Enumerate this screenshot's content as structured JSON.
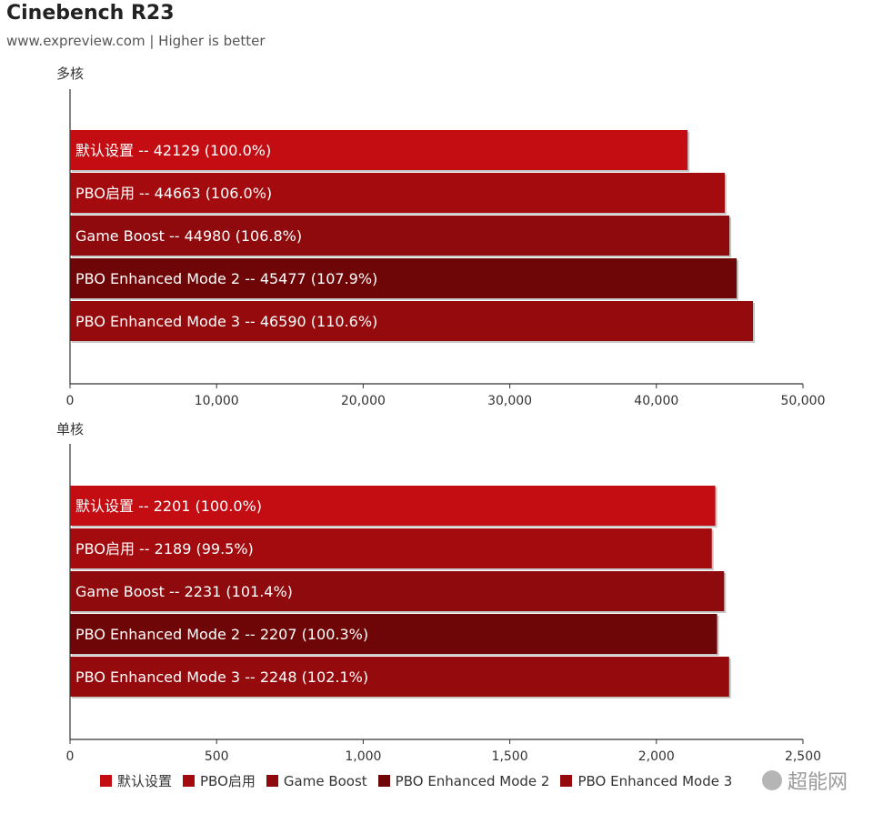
{
  "header": {
    "title": "Cinebench R23",
    "subtitle": "www.expreview.com | Higher is better"
  },
  "colors": {
    "series": [
      "#c40d12",
      "#a30b0e",
      "#8f0a0c",
      "#6e0607",
      "#950b0d"
    ],
    "axis": "#333333"
  },
  "watermark": {
    "text": "超能网",
    "icon": "wechat-icon"
  },
  "chart_data": [
    {
      "type": "bar",
      "orientation": "horizontal",
      "title": "多核",
      "categories": [
        "默认设置",
        "PBO启用",
        "Game Boost",
        "PBO Enhanced Mode 2",
        "PBO Enhanced Mode 3"
      ],
      "values": [
        42129,
        44663,
        44980,
        45477,
        46590
      ],
      "percent_labels": [
        "100.0%",
        "106.0%",
        "106.8%",
        "107.9%",
        "110.6%"
      ],
      "xlim": [
        0,
        50000
      ],
      "ticks": [
        0,
        10000,
        20000,
        30000,
        40000,
        50000
      ],
      "tick_labels": [
        "0",
        "10,000",
        "20,000",
        "30,000",
        "40,000",
        "50,000"
      ],
      "grid": false
    },
    {
      "type": "bar",
      "orientation": "horizontal",
      "title": "单核",
      "categories": [
        "默认设置",
        "PBO启用",
        "Game Boost",
        "PBO Enhanced Mode 2",
        "PBO Enhanced Mode 3"
      ],
      "values": [
        2201,
        2189,
        2231,
        2207,
        2248
      ],
      "percent_labels": [
        "100.0%",
        "99.5%",
        "101.4%",
        "100.3%",
        "102.1%"
      ],
      "xlim": [
        0,
        2500
      ],
      "ticks": [
        0,
        500,
        1000,
        1500,
        2000,
        2500
      ],
      "tick_labels": [
        "0",
        "500",
        "1,000",
        "1,500",
        "2,000",
        "2,500"
      ],
      "grid": false
    }
  ],
  "legend": {
    "position": "bottom",
    "items": [
      "默认设置",
      "PBO启用",
      "Game Boost",
      "PBO Enhanced Mode 2",
      "PBO Enhanced Mode 3"
    ]
  }
}
